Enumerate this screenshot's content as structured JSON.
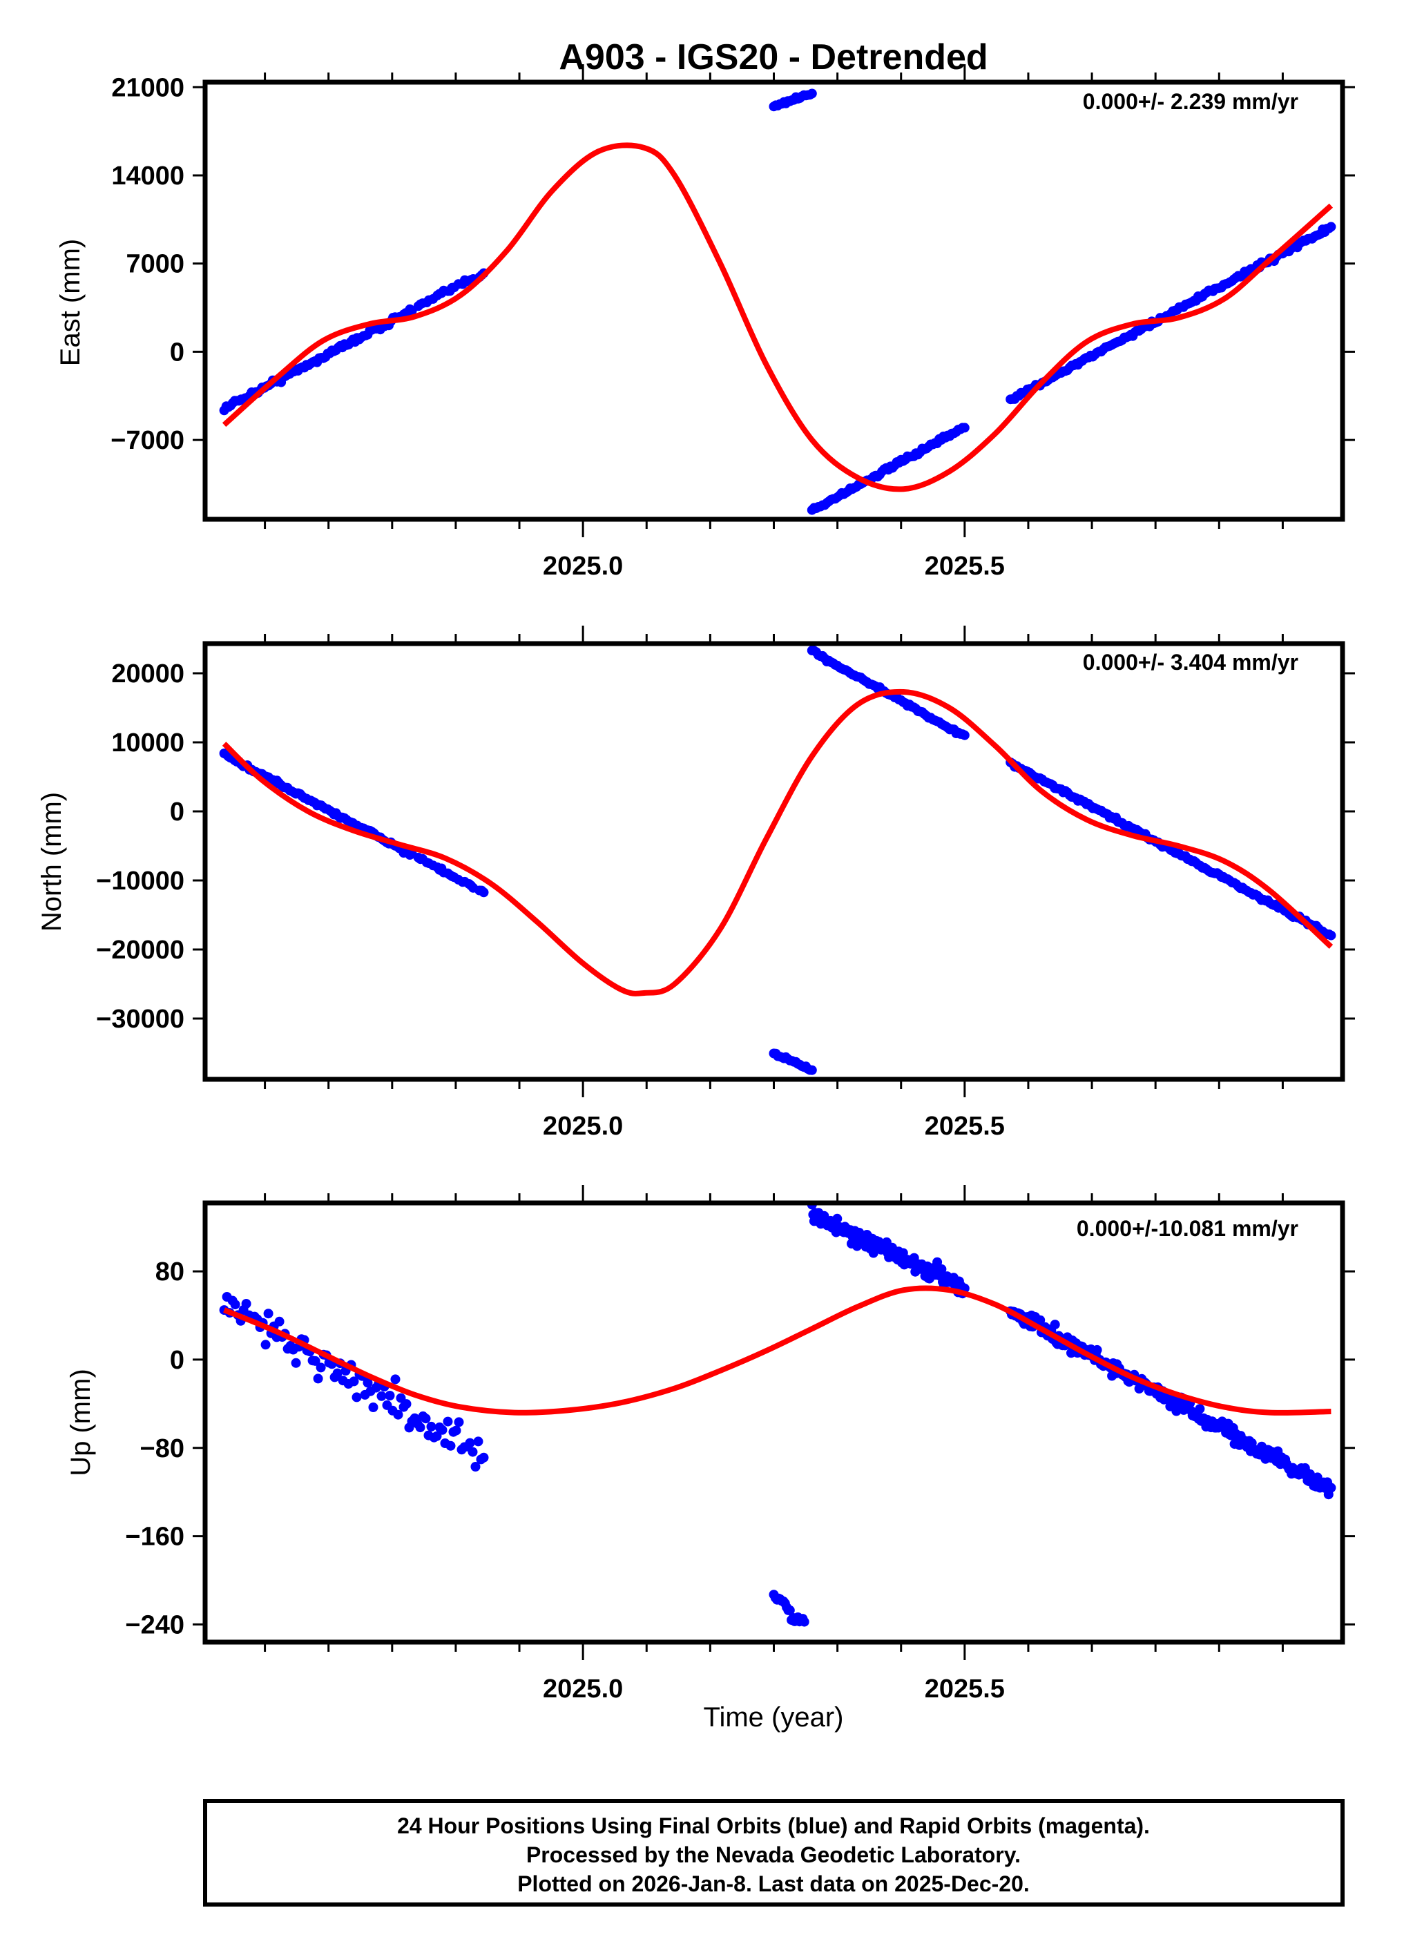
{
  "chart_data": {
    "type": "scatter",
    "title": "A903 - IGS20 - Detrended",
    "xlabel": "Time (year)",
    "xlim": [
      2024.505,
      2025.995
    ],
    "x_ticks_major": [
      2025.0,
      2025.5
    ],
    "x_tick_labels": [
      "2025.0",
      "2025.5"
    ],
    "x_minor_step": 0.0833333,
    "colors": {
      "data": "#0000ff",
      "model": "#ff0000",
      "frame": "#000000"
    },
    "panels": [
      {
        "name": "east",
        "ylabel": "East (mm)",
        "rate_label": "0.000+/- 2.239 mm/yr",
        "ylim": [
          -13300,
          21400
        ],
        "y_ticks": [
          21000,
          14000,
          7000,
          0,
          -7000
        ],
        "y_tick_labels": [
          "21000",
          "14000",
          "7000",
          "0",
          "−7000"
        ],
        "segments": [
          {
            "x0": 2024.53,
            "x1": 2024.87,
            "y0": -4500,
            "y1": 6300,
            "noise": 150,
            "gaps": true
          },
          {
            "x0": 2025.25,
            "x1": 2025.3,
            "y0": 19500,
            "y1": 20500,
            "noise": 80,
            "gaps": false
          },
          {
            "x0": 2025.3,
            "x1": 2025.5,
            "y0": -12600,
            "y1": -6000,
            "noise": 120,
            "gaps": false
          },
          {
            "x0": 2025.56,
            "x1": 2025.98,
            "y0": -3800,
            "y1": 9900,
            "noise": 120,
            "gaps": false
          }
        ],
        "model_curve": {
          "x": [
            2024.53,
            2024.6,
            2024.66,
            2024.72,
            2024.78,
            2024.84,
            2024.9,
            2024.96,
            2025.02,
            2025.08,
            2025.12,
            2025.18,
            2025.24,
            2025.3,
            2025.36,
            2025.42,
            2025.48,
            2025.54,
            2025.6,
            2025.66,
            2025.72,
            2025.78,
            2025.84,
            2025.9,
            2025.98
          ],
          "y": [
            -5800,
            -2000,
            900,
            2200,
            2800,
            4500,
            8000,
            12800,
            15900,
            16200,
            14000,
            7000,
            -1000,
            -7000,
            -10000,
            -10900,
            -9500,
            -6500,
            -2500,
            800,
            2200,
            2700,
            4200,
            7300,
            11600
          ]
        }
      },
      {
        "name": "north",
        "ylabel": "North (mm)",
        "rate_label": "0.000+/- 3.404 mm/yr",
        "ylim": [
          -38800,
          24300
        ],
        "y_ticks": [
          20000,
          10000,
          0,
          -10000,
          -20000,
          -30000
        ],
        "y_tick_labels": [
          "20000",
          "10000",
          "0",
          "−10000",
          "−20000",
          "−30000"
        ],
        "segments": [
          {
            "x0": 2024.53,
            "x1": 2024.87,
            "y0": 8200,
            "y1": -11800,
            "noise": 200,
            "gaps": true
          },
          {
            "x0": 2025.3,
            "x1": 2025.5,
            "y0": 23200,
            "y1": 10800,
            "noise": 150,
            "gaps": false
          },
          {
            "x0": 2025.25,
            "x1": 2025.3,
            "y0": -35000,
            "y1": -37500,
            "noise": 120,
            "gaps": false
          },
          {
            "x0": 2025.56,
            "x1": 2025.98,
            "y0": 7000,
            "y1": -18000,
            "noise": 180,
            "gaps": false
          }
        ],
        "model_curve": {
          "x": [
            2024.53,
            2024.58,
            2024.64,
            2024.7,
            2024.76,
            2024.82,
            2024.88,
            2024.94,
            2025.0,
            2025.05,
            2025.08,
            2025.12,
            2025.18,
            2025.24,
            2025.3,
            2025.36,
            2025.42,
            2025.48,
            2025.54,
            2025.6,
            2025.66,
            2025.72,
            2025.78,
            2025.84,
            2025.9,
            2025.98
          ],
          "y": [
            9800,
            4500,
            0,
            -2800,
            -4800,
            -6800,
            -10500,
            -16000,
            -22000,
            -25800,
            -26300,
            -25000,
            -17000,
            -4000,
            8000,
            15500,
            17300,
            15000,
            9500,
            3000,
            -1200,
            -3500,
            -5000,
            -7200,
            -11500,
            -19600
          ]
        }
      },
      {
        "name": "up",
        "ylabel": "Up (mm)",
        "rate_label": "0.000+/-10.081 mm/yr",
        "ylim": [
          -256,
          142
        ],
        "y_ticks": [
          80,
          0,
          -80,
          -160,
          -240
        ],
        "y_tick_labels": [
          "80",
          "0",
          "−80",
          "−160",
          "−240"
        ],
        "segments": [
          {
            "x0": 2024.53,
            "x1": 2024.87,
            "y0": 52,
            "y1": -88,
            "noise": 12,
            "gaps": false,
            "count": 95
          },
          {
            "x0": 2025.3,
            "x1": 2025.5,
            "y0": 131,
            "y1": 65,
            "noise": 5,
            "gaps": false,
            "count": 140
          },
          {
            "x0": 2025.25,
            "x1": 2025.29,
            "y0": -212,
            "y1": -242,
            "noise": 5,
            "gaps": false,
            "count": 20
          },
          {
            "x0": 2025.56,
            "x1": 2025.98,
            "y0": 45,
            "y1": -118,
            "noise": 5,
            "gaps": false,
            "count": 260
          }
        ],
        "model_curve": {
          "x": [
            2024.53,
            2024.6,
            2024.66,
            2024.72,
            2024.78,
            2024.84,
            2024.91,
            2024.98,
            2025.05,
            2025.12,
            2025.18,
            2025.24,
            2025.3,
            2025.36,
            2025.42,
            2025.48,
            2025.54,
            2025.6,
            2025.66,
            2025.72,
            2025.78,
            2025.84,
            2025.9,
            2025.98
          ],
          "y": [
            45,
            25,
            5,
            -15,
            -32,
            -43,
            -48,
            -46,
            -39,
            -26,
            -10,
            8,
            28,
            48,
            63,
            63,
            50,
            28,
            5,
            -16,
            -32,
            -43,
            -48,
            -47
          ]
        }
      }
    ]
  },
  "footer": {
    "line1": "24 Hour Positions Using Final Orbits (blue) and Rapid Orbits (magenta).",
    "line2": "Processed by the Nevada Geodetic Laboratory.",
    "line3": "Plotted on 2026-Jan-8. Last data on 2025-Dec-20."
  }
}
